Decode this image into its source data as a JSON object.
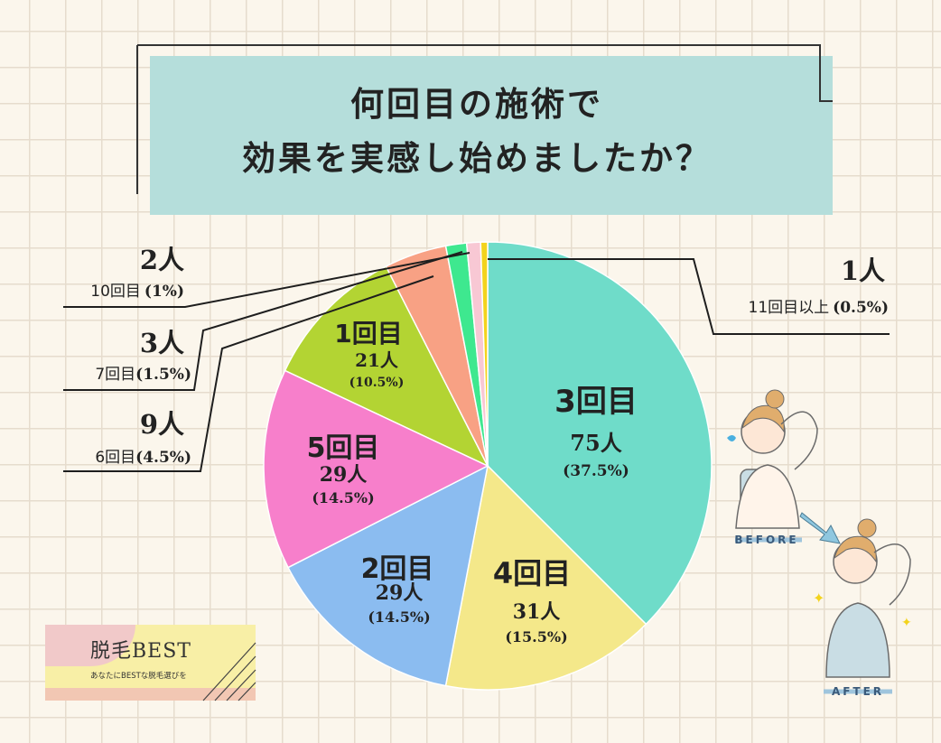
{
  "title": {
    "line1": "何回目の施術で",
    "line2": "効果を実感し始めましたか？"
  },
  "chart_data": {
    "type": "pie",
    "slices": [
      {
        "label": "3回目",
        "count": "75人",
        "percent": "(37.5%)",
        "value": 37.5,
        "color": "#6fdcc9"
      },
      {
        "label": "4回目",
        "count": "31人",
        "percent": "(15.5%)",
        "value": 15.5,
        "color": "#f4e88a"
      },
      {
        "label": "2回目",
        "count": "29人",
        "percent": "(14.5%)",
        "value": 14.5,
        "color": "#8bbcf0"
      },
      {
        "label": "5回目",
        "count": "29人",
        "percent": "(14.5%)",
        "value": 14.5,
        "color": "#f77fcb"
      },
      {
        "label": "1回目",
        "count": "21人",
        "percent": "(10.5%)",
        "value": 10.5,
        "color": "#b3d433"
      },
      {
        "label": "6回目",
        "count": "9人",
        "percent": "(4.5%)",
        "value": 4.5,
        "color": "#f8a184"
      },
      {
        "label": "7回目",
        "count": "3人",
        "percent": "(1.5%)",
        "value": 1.5,
        "color": "#3ee88f"
      },
      {
        "label": "10回目",
        "count": "2人",
        "percent": "(1%)",
        "value": 1.0,
        "color": "#f8c8d4"
      },
      {
        "label": "11回目以上",
        "count": "1人",
        "percent": "(0.5%)",
        "value": 0.5,
        "color": "#f3d31d"
      }
    ]
  },
  "illustration": {
    "before_label": "BEFORE",
    "after_label": "AFTER"
  },
  "logo": {
    "main": "脱毛BEST",
    "sub": "あなたにBESTな脱毛選びを"
  }
}
